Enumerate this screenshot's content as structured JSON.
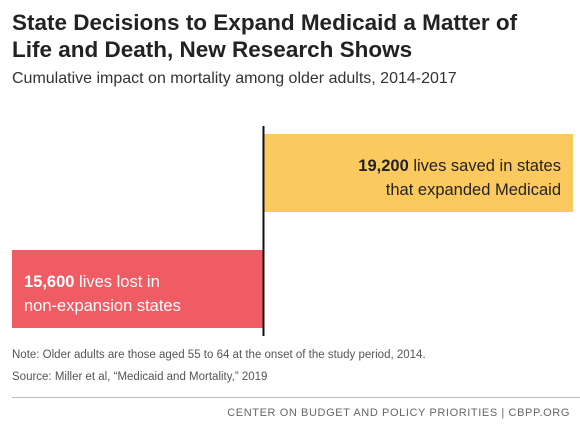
{
  "title_line1": "State Decisions to Expand Medicaid a Matter of",
  "title_line2": "Life and Death, New Research Shows",
  "subtitle": "Cumulative impact on mortality among older adults, 2014-2017",
  "note": "Note: Older adults are those aged 55 to 64 at the onset of the study period, 2014.",
  "source": "Source:  Miller et al, “Medicaid and Mortality,” 2019",
  "footer": "CENTER ON BUDGET AND POLICY PRIORITIES | CBPP.ORG",
  "colors": {
    "saved": "#fcc95e",
    "lost": "#f05c63",
    "axis": "#111111"
  },
  "chart_data": {
    "type": "bar",
    "orientation": "horizontal-diverging",
    "categories": [
      "lives saved in states that expanded Medicaid",
      "lives lost in non-expansion states"
    ],
    "values": [
      19200,
      -15600
    ],
    "labels": [
      {
        "number": "19,200",
        "line1_rest": " lives saved in states",
        "line2": "that expanded Medicaid"
      },
      {
        "number": "15,600",
        "line1_rest": " lives lost in",
        "line2": "non-expansion states"
      }
    ],
    "xlim": [
      -15600,
      19200
    ],
    "grid": false,
    "legend": "none"
  }
}
